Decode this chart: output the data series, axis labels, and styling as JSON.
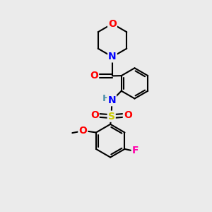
{
  "background_color": "#ebebeb",
  "atom_colors": {
    "C": "#000000",
    "N": "#0000ff",
    "O": "#ff0000",
    "S": "#cccc00",
    "F": "#ff00aa",
    "H": "#4a8fa8"
  },
  "bond_color": "#000000",
  "bond_width": 1.5
}
